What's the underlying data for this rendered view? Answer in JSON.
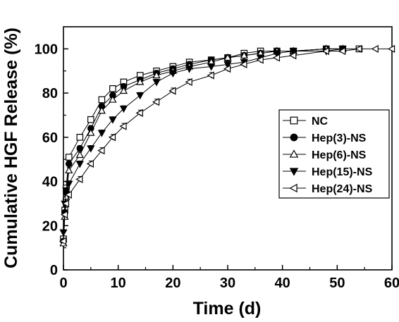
{
  "chart_data": {
    "type": "line",
    "xlabel": "Time (d)",
    "ylabel": "Cumulative HGF Release (%)",
    "xlim": [
      0,
      60
    ],
    "ylim": [
      0,
      110
    ],
    "x_ticks": [
      0,
      10,
      20,
      30,
      40,
      50,
      60
    ],
    "y_ticks": [
      0,
      20,
      40,
      60,
      80,
      100
    ],
    "grid": false,
    "legend_position": "right",
    "series": [
      {
        "name": "NC",
        "marker": "square-open",
        "color": "#000000",
        "x": [
          0,
          0.25,
          0.5,
          1,
          3,
          5,
          7,
          9,
          11,
          14,
          17,
          20,
          23,
          27,
          30,
          33,
          36,
          39,
          42,
          48,
          51,
          54
        ],
        "y": [
          14,
          27,
          37,
          51,
          60,
          68,
          77,
          82,
          85,
          88,
          90,
          92,
          94,
          95,
          96,
          98,
          99,
          99,
          99,
          100,
          100,
          100
        ]
      },
      {
        "name": "Hep(3)-NS",
        "marker": "circle-filled",
        "color": "#000000",
        "x": [
          0,
          0.25,
          0.5,
          1,
          3,
          5,
          7,
          9,
          11,
          14,
          17,
          20,
          23,
          27,
          30,
          33,
          36,
          39,
          42,
          48,
          51
        ],
        "y": [
          13,
          26,
          35,
          48,
          55,
          64,
          74,
          79,
          83,
          86,
          89,
          91,
          93,
          95,
          96,
          97,
          98,
          99,
          99,
          100,
          100
        ]
      },
      {
        "name": "Hep(6)-NS",
        "marker": "triangle-up-open",
        "color": "#000000",
        "x": [
          0,
          0.25,
          0.5,
          1,
          3,
          5,
          7,
          9,
          11,
          14,
          17,
          20,
          23,
          27,
          30,
          33,
          36,
          39,
          42,
          48,
          51
        ],
        "y": [
          12,
          24,
          33,
          45,
          52,
          62,
          72,
          77,
          81,
          85,
          88,
          90,
          92,
          94,
          96,
          97,
          98,
          99,
          99,
          100,
          100
        ]
      },
      {
        "name": "Hep(15)-NS",
        "marker": "triangle-down-filled",
        "color": "#000000",
        "x": [
          0,
          0.25,
          0.5,
          1,
          3,
          5,
          7,
          9,
          11,
          14,
          17,
          20,
          23,
          27,
          30,
          33,
          36,
          39,
          42,
          48,
          51
        ],
        "y": [
          17,
          30,
          36,
          39,
          48,
          55,
          62,
          68,
          73,
          79,
          85,
          89,
          91,
          92,
          93,
          94,
          96,
          98,
          99,
          99,
          100
        ]
      },
      {
        "name": "Hep(24)-NS",
        "marker": "triangle-left-open",
        "color": "#000000",
        "x": [
          0,
          0.25,
          0.5,
          1,
          3,
          5,
          7,
          9,
          11,
          14,
          17,
          20,
          23,
          27,
          30,
          33,
          36,
          39,
          42,
          48,
          51,
          54,
          57,
          60
        ],
        "y": [
          13,
          25,
          30,
          34,
          41,
          48,
          54,
          60,
          65,
          71,
          76,
          81,
          85,
          88,
          91,
          93,
          95,
          96,
          97,
          99,
          99,
          100,
          100,
          100
        ]
      }
    ]
  }
}
